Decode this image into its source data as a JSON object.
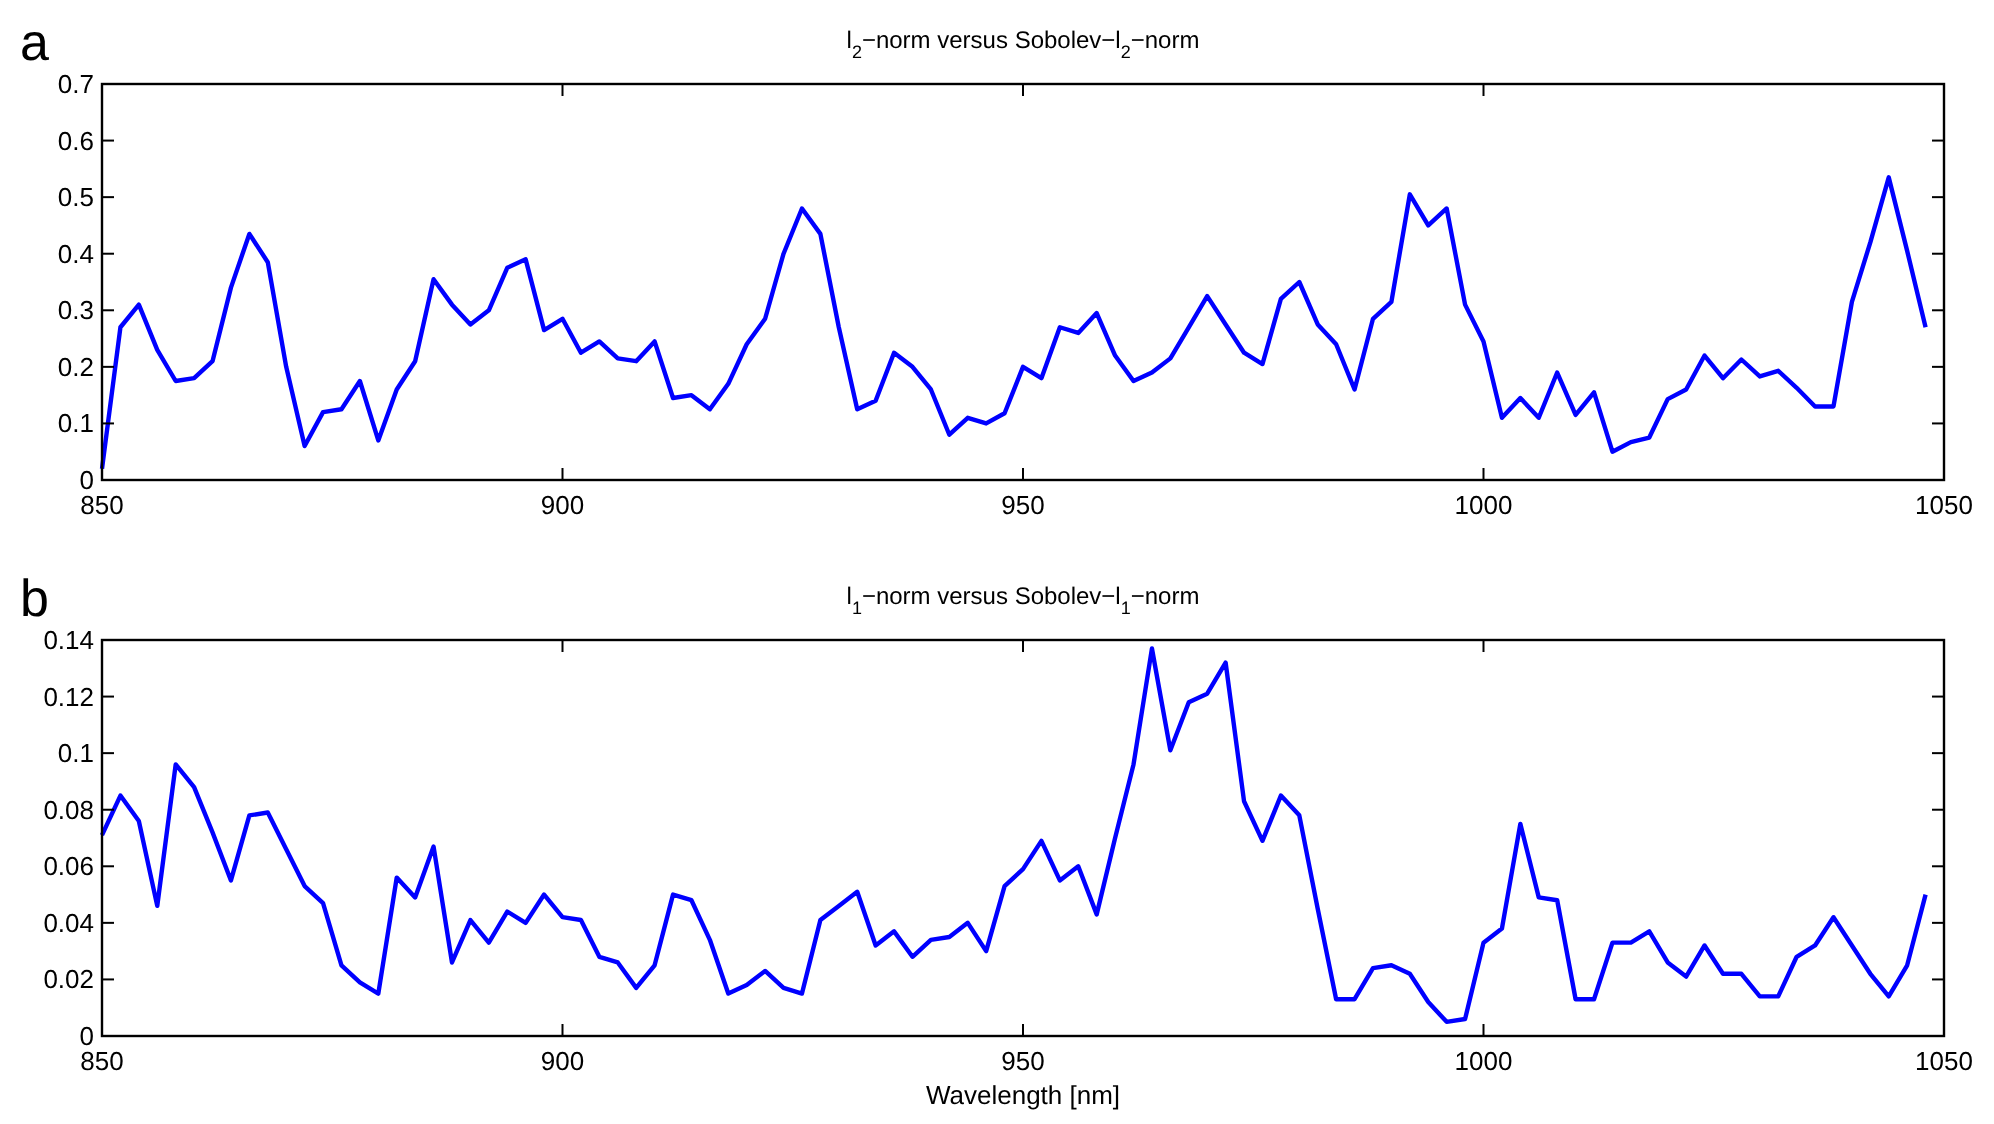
{
  "chart_data": [
    {
      "type": "line",
      "title": "l$_{2}$−norm versus Sobolev−l$_{2}$−norm",
      "annotations": [
        "a"
      ],
      "x": [
        850,
        852,
        854,
        856,
        858,
        860,
        862,
        864,
        866,
        868,
        870,
        872,
        874,
        876,
        878,
        880,
        882,
        884,
        886,
        888,
        890,
        892,
        894,
        896,
        898,
        900,
        902,
        904,
        906,
        908,
        910,
        912,
        914,
        916,
        918,
        920,
        922,
        924,
        926,
        928,
        930,
        932,
        934,
        936,
        938,
        940,
        942,
        944,
        946,
        948,
        950,
        952,
        954,
        956,
        958,
        960,
        962,
        964,
        966,
        968,
        970,
        972,
        974,
        976,
        978,
        980,
        982,
        984,
        986,
        988,
        990,
        992,
        994,
        996,
        998,
        1000,
        1002,
        1004,
        1006,
        1008,
        1010,
        1012,
        1014,
        1016,
        1018,
        1020,
        1022,
        1024,
        1026,
        1028,
        1030,
        1032,
        1034,
        1036,
        1038,
        1040,
        1042,
        1044,
        1046,
        1048
      ],
      "series": [
        {
          "color": "#0000ff",
          "values": [
            0.02,
            0.27,
            0.31,
            0.23,
            0.175,
            0.18,
            0.21,
            0.34,
            0.435,
            0.385,
            0.2,
            0.06,
            0.12,
            0.125,
            0.175,
            0.07,
            0.16,
            0.21,
            0.355,
            0.31,
            0.275,
            0.3,
            0.375,
            0.39,
            0.265,
            0.285,
            0.225,
            0.245,
            0.215,
            0.21,
            0.245,
            0.145,
            0.15,
            0.125,
            0.17,
            0.24,
            0.285,
            0.4,
            0.48,
            0.435,
            0.27,
            0.125,
            0.14,
            0.225,
            0.2,
            0.16,
            0.08,
            0.11,
            0.1,
            0.118,
            0.2,
            0.18,
            0.27,
            0.26,
            0.295,
            0.22,
            0.175,
            0.19,
            0.215,
            0.27,
            0.325,
            0.275,
            0.225,
            0.205,
            0.32,
            0.35,
            0.275,
            0.24,
            0.16,
            0.285,
            0.315,
            0.505,
            0.45,
            0.48,
            0.31,
            0.245,
            0.11,
            0.145,
            0.11,
            0.19,
            0.115,
            0.155,
            0.05,
            0.067,
            0.075,
            0.143,
            0.16,
            0.22,
            0.18,
            0.213,
            0.183,
            0.193,
            0.163,
            0.13,
            0.13,
            0.315,
            0.42,
            0.535,
            0.405,
            0.27
          ]
        }
      ],
      "xlim": [
        850,
        1050
      ],
      "xticks": [
        850,
        900,
        950,
        1000,
        1050
      ],
      "ylim": [
        0,
        0.7
      ],
      "yticks": [
        0,
        0.1,
        0.2,
        0.3,
        0.4,
        0.5,
        0.6,
        0.7
      ]
    },
    {
      "type": "line",
      "title": "l$_{1}$−norm versus Sobolev−l$_{1}$−norm",
      "xlabel": "Wavelength [nm]",
      "annotations": [
        "b"
      ],
      "x": [
        850,
        852,
        854,
        856,
        858,
        860,
        862,
        864,
        866,
        868,
        870,
        872,
        874,
        876,
        878,
        880,
        882,
        884,
        886,
        888,
        890,
        892,
        894,
        896,
        898,
        900,
        902,
        904,
        906,
        908,
        910,
        912,
        914,
        916,
        918,
        920,
        922,
        924,
        926,
        928,
        930,
        932,
        934,
        936,
        938,
        940,
        942,
        944,
        946,
        948,
        950,
        952,
        954,
        956,
        958,
        960,
        962,
        964,
        966,
        968,
        970,
        972,
        974,
        976,
        978,
        980,
        982,
        984,
        986,
        988,
        990,
        992,
        994,
        996,
        998,
        1000,
        1002,
        1004,
        1006,
        1008,
        1010,
        1012,
        1014,
        1016,
        1018,
        1020,
        1022,
        1024,
        1026,
        1028,
        1030,
        1032,
        1034,
        1036,
        1038,
        1040,
        1042,
        1044,
        1046,
        1048
      ],
      "series": [
        {
          "color": "#0000ff",
          "values": [
            0.071,
            0.085,
            0.076,
            0.046,
            0.096,
            0.088,
            0.072,
            0.055,
            0.078,
            0.079,
            0.066,
            0.053,
            0.047,
            0.025,
            0.019,
            0.015,
            0.056,
            0.049,
            0.067,
            0.026,
            0.041,
            0.033,
            0.044,
            0.04,
            0.05,
            0.042,
            0.041,
            0.028,
            0.026,
            0.017,
            0.025,
            0.05,
            0.048,
            0.034,
            0.015,
            0.018,
            0.023,
            0.017,
            0.015,
            0.041,
            0.046,
            0.051,
            0.032,
            0.037,
            0.028,
            0.034,
            0.035,
            0.04,
            0.03,
            0.053,
            0.059,
            0.069,
            0.055,
            0.06,
            0.043,
            0.07,
            0.096,
            0.137,
            0.101,
            0.118,
            0.121,
            0.132,
            0.083,
            0.069,
            0.085,
            0.078,
            0.045,
            0.013,
            0.013,
            0.024,
            0.025,
            0.022,
            0.012,
            0.005,
            0.006,
            0.033,
            0.038,
            0.075,
            0.049,
            0.048,
            0.013,
            0.013,
            0.033,
            0.033,
            0.037,
            0.026,
            0.021,
            0.032,
            0.022,
            0.022,
            0.014,
            0.014,
            0.028,
            0.032,
            0.042,
            0.032,
            0.022,
            0.014,
            0.025,
            0.05
          ]
        }
      ],
      "xlim": [
        850,
        1050
      ],
      "xticks": [
        850,
        900,
        950,
        1000,
        1050
      ],
      "ylim": [
        0,
        0.14
      ],
      "yticks": [
        0,
        0.02,
        0.04,
        0.06,
        0.08,
        0.1,
        0.12,
        0.14
      ]
    }
  ]
}
